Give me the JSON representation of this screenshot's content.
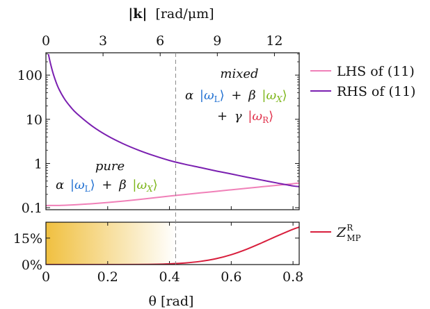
{
  "colors": {
    "lhs": "#f080b8",
    "rhs": "#7a1fb0",
    "zmp": "#d81e3c",
    "divider": "#888888",
    "shade_start": "#f0c040",
    "omega_L": "#1f6fd1",
    "omega_X": "#7cb518",
    "omega_R": "#e0304a"
  },
  "chart_data": [
    {
      "type": "line",
      "xlabel": "θ [rad]",
      "top_axis_label_main": "|k|",
      "top_axis_label_unit": "[rad/μm]",
      "xlim": [
        0,
        0.82
      ],
      "ylim": [
        0.09,
        320
      ],
      "yscale": "log",
      "x_ticks": [
        "0",
        "0.2",
        "0.4",
        "0.6",
        "0.8"
      ],
      "top_ticks": [
        "0",
        "3",
        "6",
        "9",
        "12"
      ],
      "y_ticks": [
        "0.1",
        "1",
        "10",
        "100"
      ],
      "divider_x": 0.42,
      "series": [
        {
          "name": "LHS of (11)",
          "x": [
            0,
            0.05,
            0.1,
            0.15,
            0.2,
            0.25,
            0.3,
            0.35,
            0.4,
            0.45,
            0.5,
            0.55,
            0.6,
            0.65,
            0.7,
            0.75,
            0.8,
            0.82
          ],
          "y": [
            0.112,
            0.113,
            0.117,
            0.123,
            0.131,
            0.141,
            0.153,
            0.167,
            0.183,
            0.199,
            0.216,
            0.234,
            0.254,
            0.275,
            0.298,
            0.322,
            0.348,
            0.36
          ]
        },
        {
          "name": "RHS of (11)",
          "x": [
            0.008,
            0.015,
            0.025,
            0.04,
            0.06,
            0.08,
            0.1,
            0.15,
            0.2,
            0.25,
            0.3,
            0.35,
            0.4,
            0.45,
            0.5,
            0.55,
            0.6,
            0.65,
            0.7,
            0.75,
            0.8,
            0.82
          ],
          "y": [
            300,
            180,
            100,
            52,
            29,
            19,
            13.5,
            7.0,
            4.2,
            2.8,
            2.0,
            1.5,
            1.17,
            0.96,
            0.81,
            0.68,
            0.58,
            0.49,
            0.42,
            0.36,
            0.31,
            0.3
          ]
        }
      ],
      "annotations": {
        "pure": {
          "title": "pure",
          "alpha": "α",
          "beta": "β",
          "plus": "+",
          "omega_L": "ω",
          "omega_L_sub": "L",
          "omega_X": "ω",
          "omega_X_sub": "X"
        },
        "mixed": {
          "title": "mixed",
          "alpha": "α",
          "beta": "β",
          "gamma": "γ",
          "plus": "+",
          "omega_L": "ω",
          "omega_L_sub": "L",
          "omega_X": "ω",
          "omega_X_sub": "X",
          "omega_R": "ω",
          "omega_R_sub": "R"
        }
      }
    },
    {
      "type": "area",
      "xlabel": "θ [rad]",
      "xlim": [
        0,
        0.82
      ],
      "ylim": [
        0,
        24
      ],
      "y_ticks": [
        "0%",
        "15%"
      ],
      "shaded_region_x": [
        0,
        0.42
      ],
      "series": [
        {
          "name": "Z_MP^R",
          "x": [
            0,
            0.1,
            0.2,
            0.3,
            0.35,
            0.4,
            0.45,
            0.5,
            0.55,
            0.6,
            0.65,
            0.7,
            0.75,
            0.8,
            0.82
          ],
          "y": [
            0,
            0,
            0,
            0.05,
            0.15,
            0.4,
            0.9,
            1.8,
            3.3,
            5.6,
            8.7,
            12.4,
            16.3,
            20.0,
            21.2
          ]
        }
      ]
    }
  ],
  "legend": {
    "lhs_label": "LHS of (11)",
    "rhs_label": "RHS of (11)",
    "zmp_main": "Z",
    "zmp_sup": "R",
    "zmp_sub": "MP"
  }
}
